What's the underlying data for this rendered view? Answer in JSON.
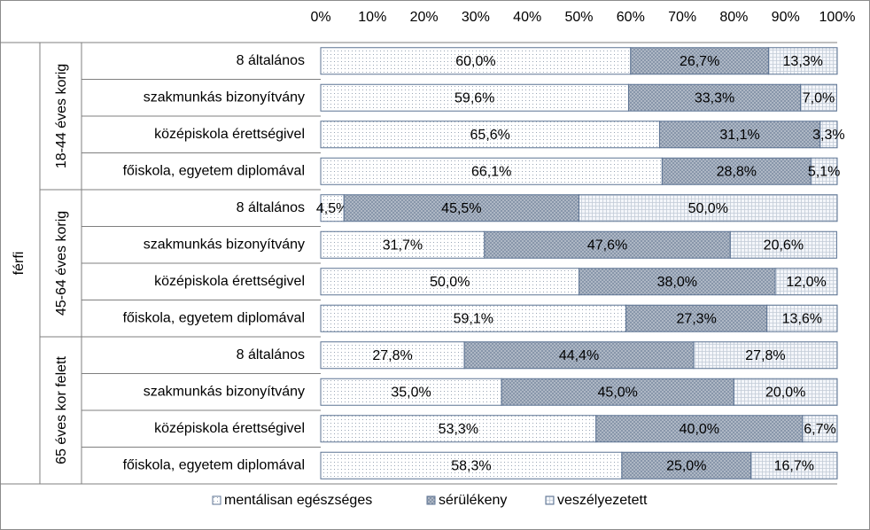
{
  "chart_data": {
    "type": "stacked_barh",
    "outer_group": "férfi",
    "groups": [
      {
        "name": "18-44 éves korig",
        "categories": [
          "8 általános",
          "szakmunkás bizonyítvány",
          "középiskola érettségivel",
          "főiskola, egyetem diplomával"
        ]
      },
      {
        "name": "45-64 éves korig",
        "categories": [
          "8 általános",
          "szakmunkás bizonyítvány",
          "középiskola érettségivel",
          "főiskola, egyetem diplomával"
        ]
      },
      {
        "name": "65 éves kor felett",
        "categories": [
          "8 általános",
          "szakmunkás bizonyítvány",
          "középiskola érettségivel",
          "főiskola, egyetem diplomával"
        ]
      }
    ],
    "series": [
      {
        "name": "mentálisan egészséges",
        "color": "#ffffff",
        "values": [
          60.0,
          59.6,
          65.6,
          66.1,
          4.5,
          31.7,
          50.0,
          59.1,
          27.8,
          35.0,
          53.3,
          58.3
        ],
        "value_labels": [
          "60,0%",
          "59,6%",
          "65,6%",
          "66,1%",
          "4,5%",
          "31,7%",
          "50,0%",
          "59,1%",
          "27,8%",
          "35,0%",
          "53,3%",
          "58,3%"
        ]
      },
      {
        "name": "sérülékeny",
        "color": "#b8c0cc",
        "values": [
          26.7,
          33.3,
          31.1,
          28.8,
          45.5,
          47.6,
          38.0,
          27.3,
          44.4,
          45.0,
          40.0,
          25.0
        ],
        "value_labels": [
          "26,7%",
          "33,3%",
          "31,1%",
          "28,8%",
          "45,5%",
          "47,6%",
          "38,0%",
          "27,3%",
          "44,4%",
          "45,0%",
          "40,0%",
          "25,0%"
        ]
      },
      {
        "name": "veszélyezetett",
        "color": "#f4f6fa",
        "values": [
          13.3,
          7.0,
          3.3,
          5.1,
          50.0,
          20.6,
          12.0,
          13.6,
          27.8,
          20.0,
          6.7,
          16.7
        ],
        "value_labels": [
          "13,3%",
          "7,0%",
          "3,3%",
          "5,1%",
          "50,0%",
          "20,6%",
          "12,0%",
          "13,6%",
          "27,8%",
          "20,0%",
          "6,7%",
          "16,7%"
        ]
      }
    ],
    "xlim": [
      0,
      100
    ],
    "xticks": [
      {
        "value": 0,
        "label": "0%"
      },
      {
        "value": 10,
        "label": "10%"
      },
      {
        "value": 20,
        "label": "20%"
      },
      {
        "value": 30,
        "label": "30%"
      },
      {
        "value": 40,
        "label": "40%"
      },
      {
        "value": 50,
        "label": "50%"
      },
      {
        "value": 60,
        "label": "60%"
      },
      {
        "value": 70,
        "label": "70%"
      },
      {
        "value": 80,
        "label": "80%"
      },
      {
        "value": 90,
        "label": "90%"
      },
      {
        "value": 100,
        "label": "100%"
      }
    ],
    "legend": "bottom"
  }
}
